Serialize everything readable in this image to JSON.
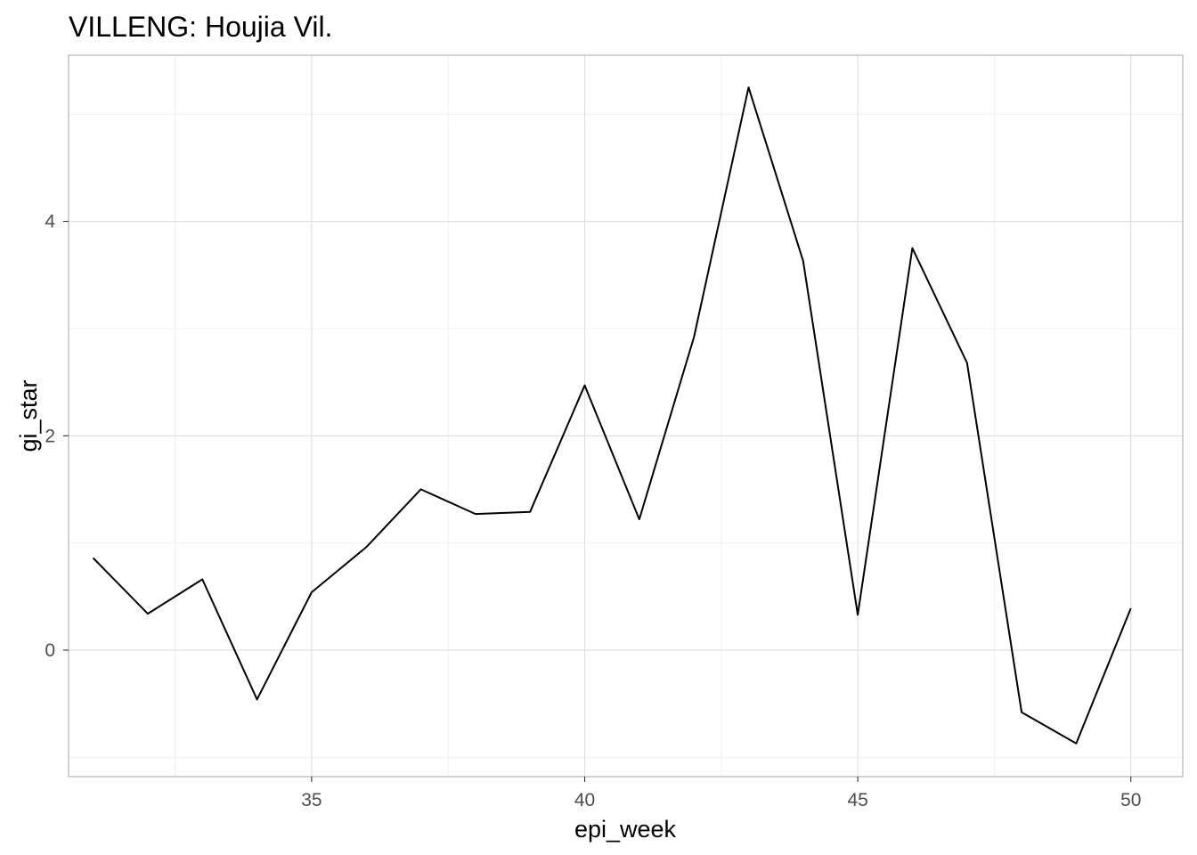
{
  "chart_data": {
    "type": "line",
    "title": "VILLENG: Houjia Vil.",
    "xlabel": "epi_week",
    "ylabel": "gi_star",
    "xlim": [
      30.55,
      50.95
    ],
    "ylim": [
      -1.18,
      5.55
    ],
    "x_ticks": [
      35,
      40,
      45,
      50
    ],
    "x_minor_ticks": [
      32.5,
      37.5,
      42.5,
      47.5
    ],
    "y_ticks": [
      0,
      2,
      4
    ],
    "y_minor_ticks": [
      -1,
      1,
      3,
      5
    ],
    "x_tick_labels": [
      "35",
      "40",
      "45",
      "50"
    ],
    "y_tick_labels": [
      "0",
      "2",
      "4"
    ],
    "grid": true,
    "legend": "none",
    "line_color": "#000000",
    "x": [
      31,
      32,
      33,
      34,
      35,
      36,
      37,
      38,
      39,
      40,
      41,
      42,
      43,
      44,
      45,
      46,
      47,
      48,
      49,
      50
    ],
    "values": [
      0.86,
      0.34,
      0.66,
      -0.46,
      0.54,
      0.96,
      1.5,
      1.27,
      1.29,
      2.47,
      1.22,
      2.92,
      5.25,
      3.63,
      0.33,
      3.75,
      2.68,
      -0.58,
      -0.87,
      0.39
    ]
  }
}
